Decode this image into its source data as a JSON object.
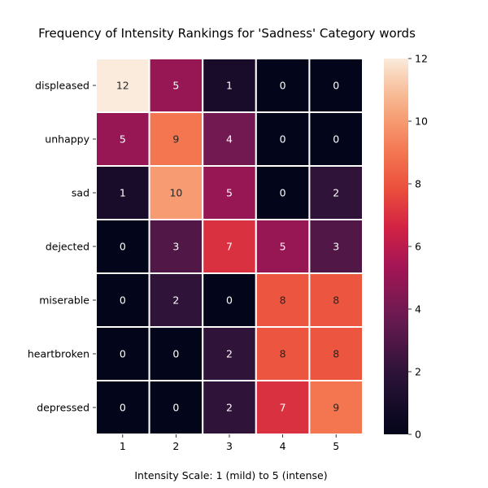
{
  "chart_data": {
    "type": "heatmap",
    "title": "Frequency of Intensity Rankings for 'Sadness' Category words",
    "xlabel": "Intensity Scale: 1 (mild) to 5 (intense)",
    "ylabel": "",
    "x_categories": [
      "1",
      "2",
      "3",
      "4",
      "5"
    ],
    "y_categories": [
      "displeased",
      "unhappy",
      "sad",
      "dejected",
      "miserable",
      "heartbroken",
      "depressed"
    ],
    "values": [
      [
        12,
        5,
        1,
        0,
        0
      ],
      [
        5,
        9,
        4,
        0,
        0
      ],
      [
        1,
        10,
        5,
        0,
        2
      ],
      [
        0,
        3,
        7,
        5,
        3
      ],
      [
        0,
        2,
        0,
        8,
        8
      ],
      [
        0,
        0,
        2,
        8,
        8
      ],
      [
        0,
        0,
        2,
        7,
        9
      ]
    ],
    "colorbar": {
      "min": 0,
      "max": 12,
      "ticks": [
        "0",
        "2",
        "4",
        "6",
        "8",
        "10",
        "12"
      ],
      "colormap": "rocket"
    },
    "annotations": "cell values shown",
    "grid": false
  }
}
